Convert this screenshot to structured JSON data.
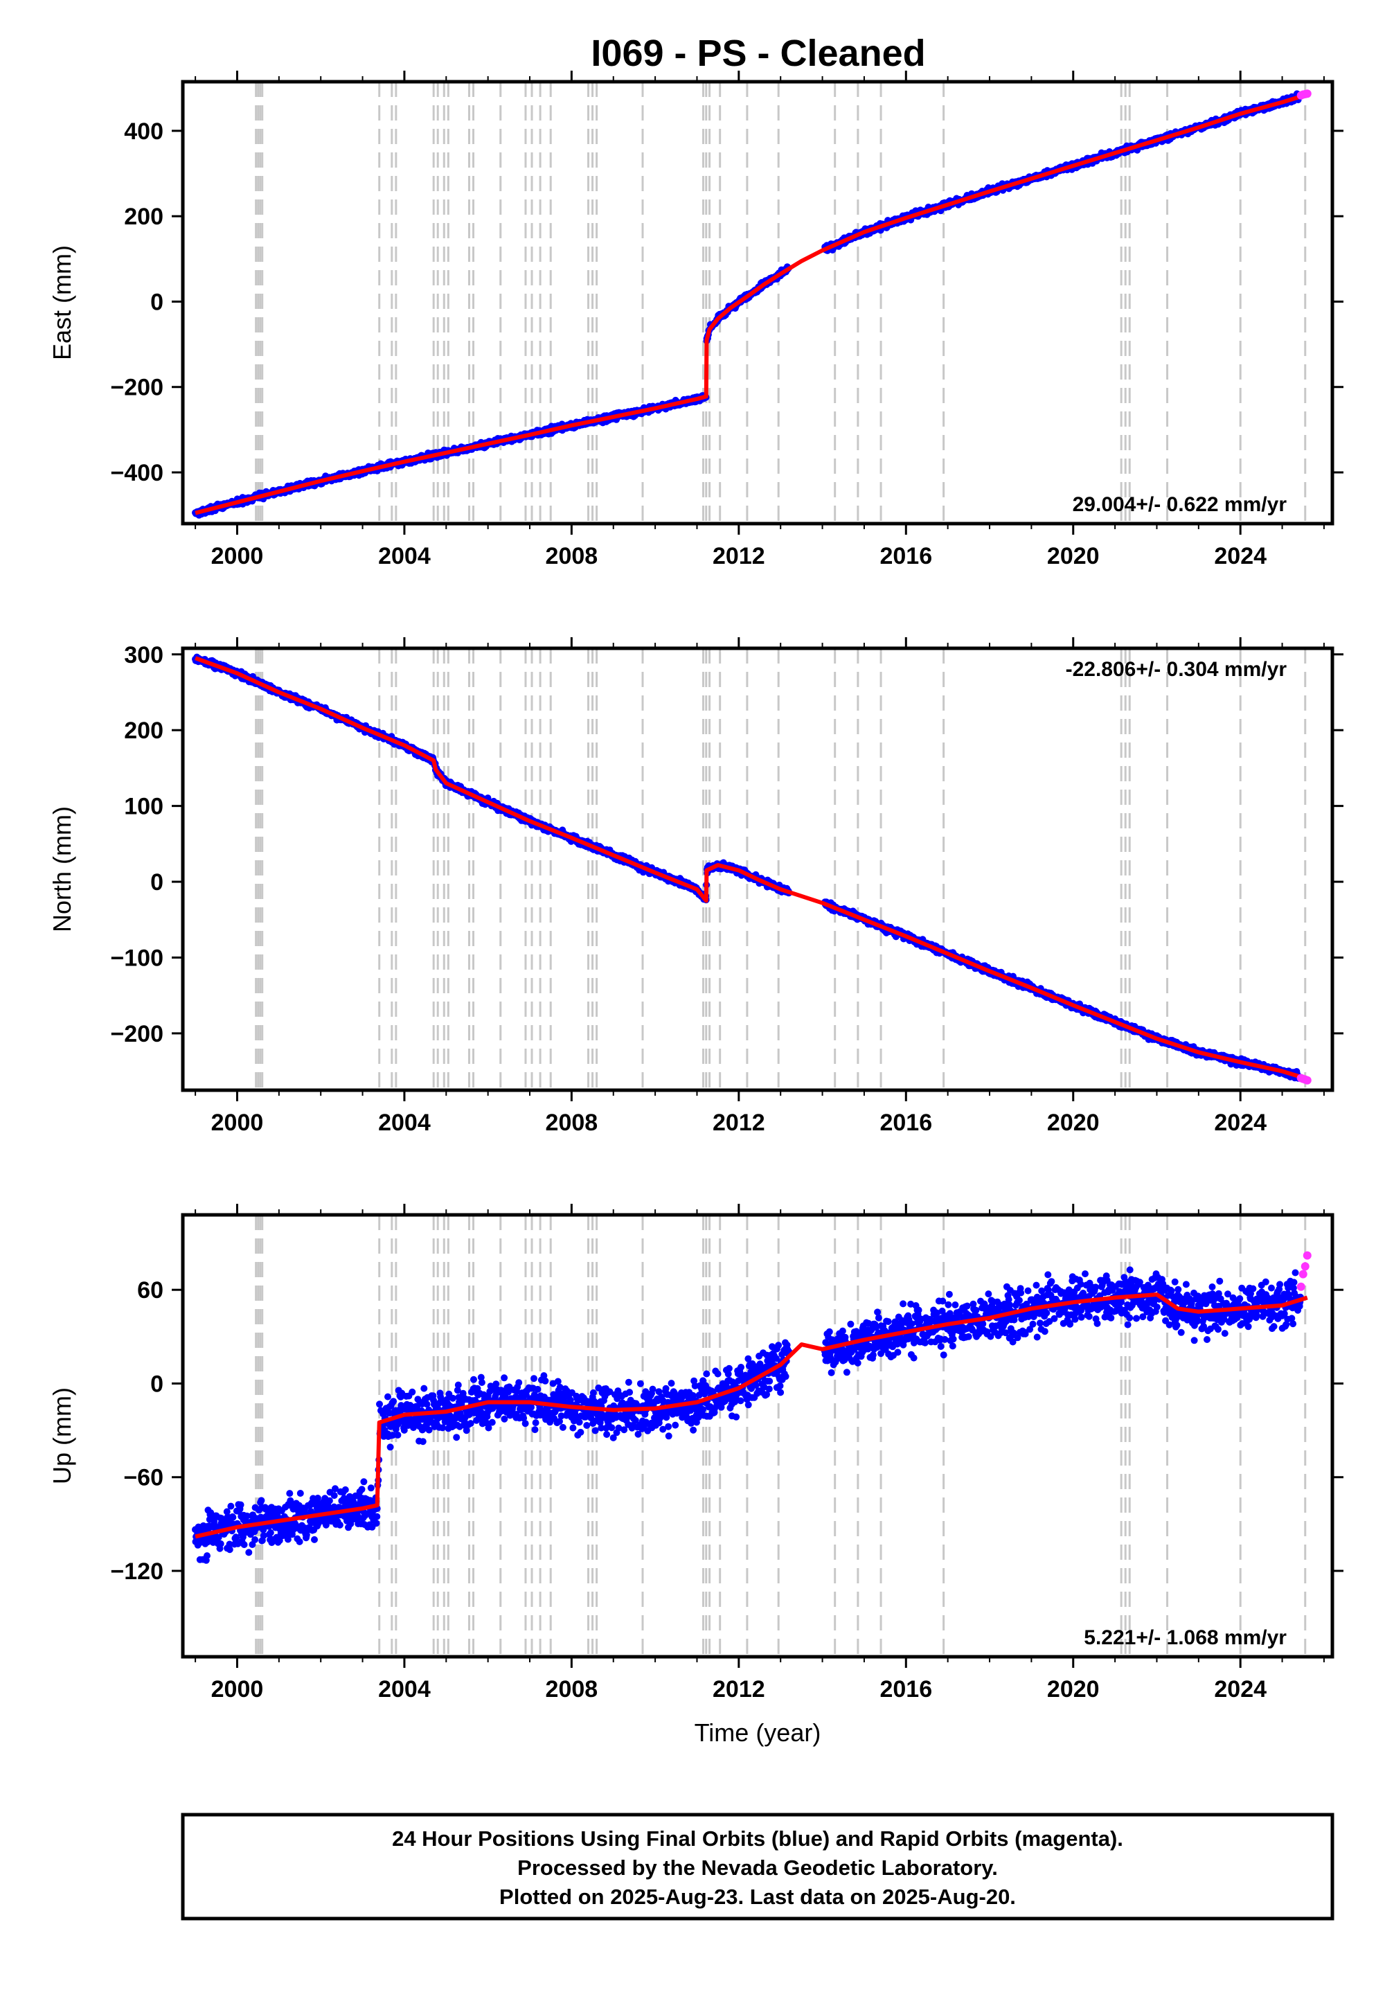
{
  "title": "I069  - PS - Cleaned",
  "footer": {
    "lines": [
      "24 Hour Positions Using Final Orbits (blue) and Rapid Orbits (magenta).",
      "Processed by the Nevada Geodetic Laboratory.",
      "Plotted on 2025-Aug-23. Last data on 2025-Aug-20."
    ]
  },
  "colors": {
    "final_orbits": "#0000ff",
    "rapid_orbits": "#ff33ff",
    "model": "#ff0000",
    "events": "#c8c8c8"
  },
  "chart_data": [
    {
      "type": "scatter",
      "panel": "east",
      "ylabel": "East (mm)",
      "xlabel": "",
      "xlim": [
        1998.7,
        2026.2
      ],
      "ylim": [
        -520,
        515
      ],
      "xticks": [
        2000,
        2004,
        2008,
        2012,
        2016,
        2020,
        2024
      ],
      "xtick_labels": [
        "2000",
        "2004",
        "2008",
        "2012",
        "2016",
        "2020",
        "2024"
      ],
      "yticks": [
        -400,
        -200,
        0,
        200,
        400
      ],
      "ytick_labels": [
        "−400",
        "−200",
        "0",
        "200",
        "400"
      ],
      "rate_label": "29.004+/- 0.622 mm/yr",
      "rate_label_position": "bottom-right",
      "scatter": 5,
      "series": [
        {
          "role": "model",
          "x": [
            1999.0,
            2000.0,
            2001.0,
            2002.0,
            2003.0,
            2004.0,
            2005.0,
            2006.0,
            2007.0,
            2008.0,
            2009.0,
            2010.0,
            2011.0,
            2011.22,
            2011.23,
            2011.3,
            2011.5,
            2011.8,
            2012.2,
            2012.6,
            2013.0,
            2013.5,
            2014.0,
            2015.0,
            2016.0,
            2017.0,
            2018.0,
            2019.0,
            2020.0,
            2021.0,
            2022.0,
            2023.0,
            2024.0,
            2025.0,
            2025.6
          ],
          "y": [
            -495,
            -470,
            -445,
            -420,
            -397,
            -375,
            -354,
            -333,
            -312,
            -290,
            -270,
            -250,
            -228,
            -222,
            -90,
            -65,
            -40,
            -15,
            12,
            40,
            65,
            95,
            120,
            163,
            196,
            227,
            258,
            288,
            318,
            348,
            378,
            408,
            440,
            467,
            485
          ]
        },
        {
          "role": "rapid",
          "x": [
            2025.45,
            2025.5,
            2025.55,
            2025.6
          ],
          "y": [
            483,
            485,
            486,
            487
          ]
        }
      ]
    },
    {
      "type": "scatter",
      "panel": "north",
      "ylabel": "North (mm)",
      "xlabel": "",
      "xlim": [
        1998.7,
        2026.2
      ],
      "ylim": [
        -275,
        308
      ],
      "xticks": [
        2000,
        2004,
        2008,
        2012,
        2016,
        2020,
        2024
      ],
      "xtick_labels": [
        "2000",
        "2004",
        "2008",
        "2012",
        "2016",
        "2020",
        "2024"
      ],
      "yticks": [
        -200,
        -100,
        0,
        100,
        200,
        300
      ],
      "ytick_labels": [
        "−200",
        "−100",
        "0",
        "100",
        "200",
        "300"
      ],
      "rate_label": "-22.806+/- 0.304 mm/yr",
      "rate_label_position": "top-right",
      "scatter": 3,
      "series": [
        {
          "role": "model",
          "x": [
            1999.0,
            2000.0,
            2001.0,
            2002.0,
            2003.0,
            2004.0,
            2004.7,
            2004.75,
            2005.0,
            2006.0,
            2007.0,
            2008.0,
            2009.0,
            2010.0,
            2011.0,
            2011.22,
            2011.23,
            2011.5,
            2012.0,
            2012.5,
            2013.0,
            2014.0,
            2015.0,
            2016.0,
            2017.0,
            2018.0,
            2019.0,
            2020.0,
            2021.0,
            2022.0,
            2023.0,
            2024.0,
            2025.0,
            2025.6
          ],
          "y": [
            295,
            275,
            250,
            228,
            203,
            180,
            160,
            148,
            130,
            105,
            80,
            58,
            35,
            12,
            -10,
            -25,
            15,
            22,
            15,
            2,
            -10,
            -28,
            -50,
            -72,
            -95,
            -118,
            -140,
            -163,
            -185,
            -207,
            -225,
            -238,
            -250,
            -260
          ]
        },
        {
          "role": "rapid",
          "x": [
            2025.45,
            2025.5,
            2025.55,
            2025.6
          ],
          "y": [
            -259,
            -260,
            -261,
            -262
          ]
        }
      ]
    },
    {
      "type": "scatter",
      "panel": "up",
      "ylabel": "Up (mm)",
      "xlabel": "Time (year)",
      "xlim": [
        1998.7,
        2026.2
      ],
      "ylim": [
        -175,
        108
      ],
      "xticks": [
        2000,
        2004,
        2008,
        2012,
        2016,
        2020,
        2024
      ],
      "xtick_labels": [
        "2000",
        "2004",
        "2008",
        "2012",
        "2016",
        "2020",
        "2024"
      ],
      "yticks": [
        -120,
        -60,
        0,
        60
      ],
      "ytick_labels": [
        "−120",
        "−60",
        "0",
        "60"
      ],
      "rate_label": "5.221+/- 1.068 mm/yr",
      "rate_label_position": "bottom-right",
      "scatter": 10,
      "series": [
        {
          "role": "model",
          "x": [
            1999.0,
            2000.0,
            2001.0,
            2002.0,
            2003.0,
            2003.35,
            2003.4,
            2004.0,
            2005.0,
            2006.0,
            2007.0,
            2008.0,
            2009.0,
            2010.0,
            2011.0,
            2012.0,
            2013.0,
            2013.5,
            2014.0,
            2015.0,
            2016.0,
            2017.0,
            2018.0,
            2019.0,
            2020.0,
            2021.0,
            2022.0,
            2022.5,
            2023.0,
            2024.0,
            2025.0,
            2025.6
          ],
          "y": [
            -98,
            -92,
            -88,
            -84,
            -80,
            -78,
            -25,
            -20,
            -18,
            -12,
            -12,
            -15,
            -17,
            -16,
            -12,
            -3,
            12,
            25,
            22,
            28,
            33,
            38,
            42,
            48,
            52,
            55,
            57,
            48,
            46,
            48,
            50,
            55
          ]
        },
        {
          "role": "rapid",
          "x": [
            2025.45,
            2025.5,
            2025.55,
            2025.6
          ],
          "y": [
            62,
            70,
            75,
            82
          ]
        }
      ]
    }
  ],
  "events": [
    2000.45,
    2000.5,
    2000.55,
    2000.6,
    2003.4,
    2003.7,
    2003.8,
    2004.7,
    2004.8,
    2004.95,
    2005.05,
    2005.55,
    2005.65,
    2006.3,
    2006.9,
    2007.05,
    2007.25,
    2007.5,
    2008.4,
    2008.5,
    2008.6,
    2009.7,
    2011.15,
    2011.22,
    2011.3,
    2011.55,
    2012.2,
    2012.95,
    2014.3,
    2014.85,
    2015.4,
    2016.9,
    2021.15,
    2021.25,
    2021.35,
    2022.25,
    2024.0,
    2025.55
  ]
}
